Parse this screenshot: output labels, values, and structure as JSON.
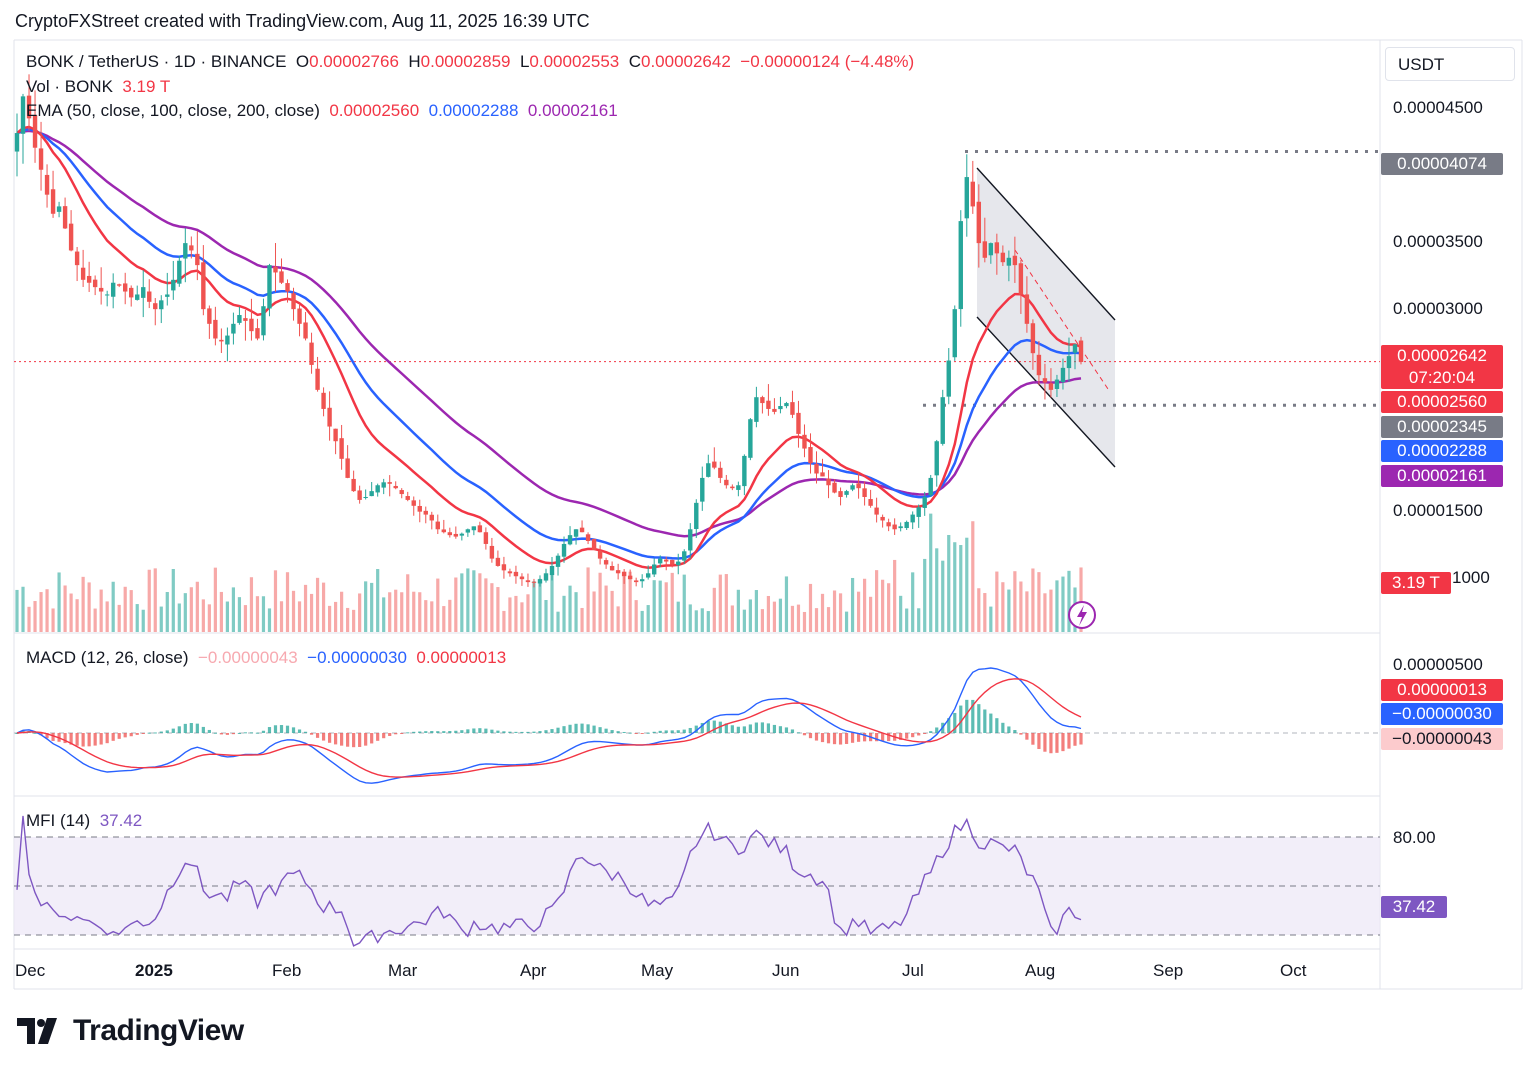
{
  "header": {
    "credit": "CryptoFXStreet created with TradingView.com, Aug 11, 2025 16:39 UTC"
  },
  "legend": {
    "symbol": "BONK / TetherUS · 1D · BINANCE",
    "o_label": "O",
    "o_value": "0.00002766",
    "h_label": "H",
    "h_value": "0.00002859",
    "l_label": "L",
    "l_value": "0.00002553",
    "c_label": "C",
    "c_value": "0.00002642",
    "change": "−0.00000124 (−4.48%)",
    "vol_label": "Vol · BONK",
    "vol_value": "3.19 T",
    "ema_label": "EMA (50, close, 100, close, 200, close)",
    "ema50": "0.00002560",
    "ema100": "0.00002288",
    "ema200": "0.00002161",
    "macd_label": "MACD (12, 26, close)",
    "macd_hist": "−0.00000043",
    "macd_line": "−0.00000030",
    "macd_signal": "0.00000013",
    "mfi_label": "MFI (14)",
    "mfi_value": "37.42"
  },
  "price_axis": {
    "currency": "USDT",
    "ticks": [
      "0.00004500",
      "0.00003500",
      "0.00003000",
      "0.00001500",
      "1000"
    ],
    "macd_ticks": [
      "0.00000500"
    ],
    "mfi_ticks": [
      "80.00"
    ]
  },
  "price_tags": {
    "resistance": "0.00004074",
    "last_price": "0.00002642",
    "countdown": "07:20:04",
    "ema50": "0.00002560",
    "support": "0.00002345",
    "ema100": "0.00002288",
    "ema200": "0.00002161",
    "volume": "3.19 T",
    "macd_signal": "0.00000013",
    "macd_line": "−0.00000030",
    "macd_hist": "−0.00000043",
    "mfi": "37.42"
  },
  "time_axis": {
    "months": [
      "Dec",
      "2025",
      "Feb",
      "Mar",
      "Apr",
      "May",
      "Jun",
      "Jul",
      "Aug",
      "Sep",
      "Oct"
    ]
  },
  "brand": {
    "name": "TradingView"
  },
  "colors": {
    "up": "#26a69a",
    "down": "#ef5350",
    "ema50": "#f23645",
    "ema100": "#2962ff",
    "ema200": "#9c27b0",
    "mfi": "#7e57c2",
    "channel": "#131722"
  },
  "chart_data": {
    "type": "candlestick",
    "price_ylim": [
      8e-06,
      4.8e-05
    ],
    "levels": {
      "resistance": 4.074e-05,
      "support": 2.345e-05,
      "last": 2.642e-05
    },
    "closes": [
      4.2e-05,
      4.45e-05,
      4.3e-05,
      4.1e-05,
      3.95e-05,
      3.78e-05,
      3.65e-05,
      3.7e-05,
      3.55e-05,
      3.4e-05,
      3.3e-05,
      3.2e-05,
      3.18e-05,
      3.15e-05,
      3.12e-05,
      3.1e-05,
      3.18e-05,
      3.16e-05,
      3.12e-05,
      3.08e-05,
      3.1e-05,
      3.15e-05,
      3.05e-05,
      3e-05,
      3.06e-05,
      3.1e-05,
      3.2e-05,
      3.33e-05,
      3.45e-05,
      3.4e-05,
      3.3e-05,
      3e-05,
      2.9e-05,
      2.8e-05,
      2.78e-05,
      2.82e-05,
      2.9e-05,
      2.96e-05,
      2.92e-05,
      2.85e-05,
      2.8e-05,
      3.02e-05,
      3.3e-05,
      3.25e-05,
      3.18e-05,
      3.12e-05,
      3e-05,
      2.9e-05,
      2.8e-05,
      2.62e-05,
      2.45e-05,
      2.32e-05,
      2.2e-05,
      2.1e-05,
      1.98e-05,
      1.85e-05,
      1.76e-05,
      1.7e-05,
      1.72e-05,
      1.76e-05,
      1.8e-05,
      1.82e-05,
      1.81e-05,
      1.78e-05,
      1.74e-05,
      1.7e-05,
      1.66e-05,
      1.62e-05,
      1.6e-05,
      1.56e-05,
      1.5e-05,
      1.48e-05,
      1.46e-05,
      1.45e-05,
      1.47e-05,
      1.5e-05,
      1.52e-05,
      1.48e-05,
      1.4e-05,
      1.3e-05,
      1.25e-05,
      1.22e-05,
      1.2e-05,
      1.18e-05,
      1.16e-05,
      1.14e-05,
      1.14e-05,
      1.16e-05,
      1.2e-05,
      1.25e-05,
      1.32e-05,
      1.4e-05,
      1.46e-05,
      1.5e-05,
      1.48e-05,
      1.42e-05,
      1.36e-05,
      1.3e-05,
      1.26e-05,
      1.22e-05,
      1.2e-05,
      1.18e-05,
      1.16e-05,
      1.14e-05,
      1.16e-05,
      1.2e-05,
      1.26e-05,
      1.3e-05,
      1.28e-05,
      1.26e-05,
      1.28e-05,
      1.35e-05,
      1.5e-05,
      1.68e-05,
      1.85e-05,
      1.95e-05,
      1.92e-05,
      1.85e-05,
      1.8e-05,
      1.78e-05,
      1.8e-05,
      2e-05,
      2.25e-05,
      2.4e-05,
      2.36e-05,
      2.32e-05,
      2.3e-05,
      2.34e-05,
      2.36e-05,
      2.28e-05,
      2.15e-05,
      2.05e-05,
      1.95e-05,
      1.88e-05,
      1.86e-05,
      1.8e-05,
      1.75e-05,
      1.72e-05,
      1.76e-05,
      1.8e-05,
      1.78e-05,
      1.72e-05,
      1.66e-05,
      1.6e-05,
      1.56e-05,
      1.52e-05,
      1.5e-05,
      1.52e-05,
      1.55e-05,
      1.6e-05,
      1.65e-05,
      1.72e-05,
      1.85e-05,
      2.1e-05,
      2.4e-05,
      2.65e-05,
      3e-05,
      3.6e-05,
      3.9e-05,
      3.7e-05,
      3.45e-05,
      3.35e-05,
      3.45e-05,
      3.38e-05,
      3.32e-05,
      3.35e-05,
      3.3e-05,
      3.1e-05,
      2.9e-05,
      2.7e-05,
      2.55e-05,
      2.5e-05,
      2.45e-05,
      2.52e-05,
      2.6e-05,
      2.68e-05,
      2.76e-05,
      2.64e-05
    ]
  }
}
